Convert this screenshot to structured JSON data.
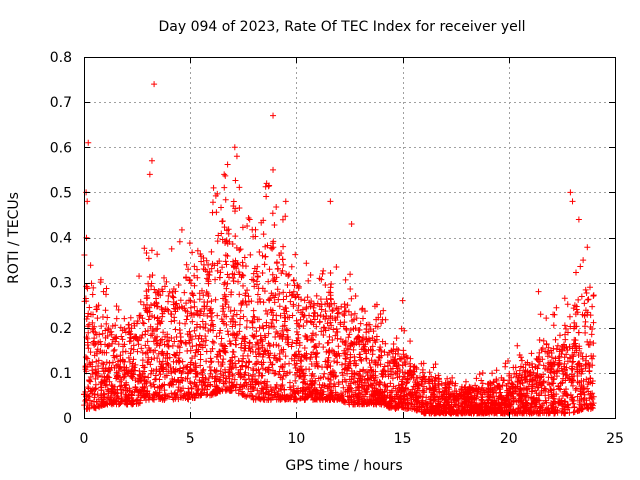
{
  "chart_data": {
    "type": "scatter",
    "title": "Day 094 of 2023, Rate Of TEC Index for receiver yell",
    "xlabel": "GPS time / hours",
    "ylabel": "ROTI / TECUs",
    "xlim": [
      0,
      25
    ],
    "ylim": [
      0,
      0.8
    ],
    "x_ticks": [
      0,
      5,
      10,
      15,
      20,
      25
    ],
    "x_tick_labels": [
      "0",
      "5",
      "10",
      "15",
      "20",
      "25"
    ],
    "y_ticks": [
      0,
      0.1,
      0.2,
      0.3,
      0.4,
      0.5,
      0.6,
      0.7,
      0.8
    ],
    "y_tick_labels": [
      "0",
      "0.1",
      "0.2",
      "0.3",
      "0.4",
      "0.5",
      "0.6",
      "0.7",
      "0.8"
    ],
    "grid": true,
    "marker": "plus",
    "color": "#ff0000",
    "series": [
      {
        "name": "ROTI",
        "envelope_hours": [
          0,
          0.5,
          1,
          1.5,
          2,
          2.5,
          3,
          3.5,
          4,
          4.5,
          5,
          5.5,
          6,
          6.5,
          7,
          7.5,
          8,
          8.5,
          9,
          9.5,
          10,
          10.5,
          11,
          11.5,
          12,
          12.5,
          13,
          13.5,
          14,
          14.5,
          15,
          15.5,
          16,
          16.5,
          17,
          17.5,
          18,
          18.5,
          19,
          19.5,
          20,
          20.5,
          21,
          21.5,
          22,
          22.5,
          23,
          23.5,
          24
        ],
        "envelope_typical_max": [
          0.35,
          0.28,
          0.22,
          0.2,
          0.2,
          0.24,
          0.3,
          0.3,
          0.28,
          0.3,
          0.35,
          0.33,
          0.38,
          0.42,
          0.42,
          0.36,
          0.33,
          0.38,
          0.4,
          0.34,
          0.3,
          0.27,
          0.26,
          0.28,
          0.27,
          0.25,
          0.22,
          0.2,
          0.18,
          0.16,
          0.15,
          0.12,
          0.1,
          0.09,
          0.08,
          0.07,
          0.07,
          0.07,
          0.08,
          0.09,
          0.1,
          0.11,
          0.12,
          0.15,
          0.18,
          0.2,
          0.25,
          0.28,
          0.3
        ],
        "envelope_floor": [
          0.02,
          0.02,
          0.03,
          0.03,
          0.03,
          0.03,
          0.04,
          0.04,
          0.04,
          0.04,
          0.04,
          0.05,
          0.05,
          0.06,
          0.06,
          0.05,
          0.04,
          0.04,
          0.04,
          0.04,
          0.04,
          0.04,
          0.04,
          0.04,
          0.04,
          0.03,
          0.03,
          0.03,
          0.03,
          0.02,
          0.02,
          0.02,
          0.01,
          0.01,
          0.01,
          0.01,
          0.01,
          0.01,
          0.01,
          0.01,
          0.01,
          0.01,
          0.01,
          0.01,
          0.01,
          0.01,
          0.01,
          0.02,
          0.02
        ],
        "outliers": [
          {
            "x": 0.1,
            "y": 0.5
          },
          {
            "x": 0.15,
            "y": 0.48
          },
          {
            "x": 0.2,
            "y": 0.61
          },
          {
            "x": 3.3,
            "y": 0.74
          },
          {
            "x": 3.2,
            "y": 0.57
          },
          {
            "x": 3.1,
            "y": 0.54
          },
          {
            "x": 6.1,
            "y": 0.51
          },
          {
            "x": 6.6,
            "y": 0.54
          },
          {
            "x": 7.1,
            "y": 0.6
          },
          {
            "x": 7.2,
            "y": 0.58
          },
          {
            "x": 7.8,
            "y": 0.44
          },
          {
            "x": 8.6,
            "y": 0.52
          },
          {
            "x": 8.9,
            "y": 0.67
          },
          {
            "x": 8.9,
            "y": 0.55
          },
          {
            "x": 9.5,
            "y": 0.48
          },
          {
            "x": 11.6,
            "y": 0.48
          },
          {
            "x": 12.6,
            "y": 0.43
          },
          {
            "x": 15.0,
            "y": 0.26
          },
          {
            "x": 20.4,
            "y": 0.16
          },
          {
            "x": 21.4,
            "y": 0.28
          },
          {
            "x": 21.5,
            "y": 0.23
          },
          {
            "x": 22.9,
            "y": 0.5
          },
          {
            "x": 23.0,
            "y": 0.48
          },
          {
            "x": 23.3,
            "y": 0.44
          },
          {
            "x": 23.5,
            "y": 0.35
          }
        ]
      }
    ]
  }
}
